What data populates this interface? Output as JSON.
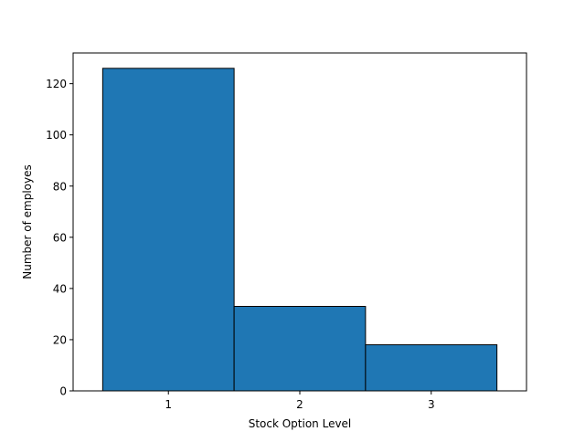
{
  "chart_data": {
    "type": "bar",
    "categories": [
      "1",
      "2",
      "3"
    ],
    "values": [
      126,
      33,
      18
    ],
    "title": "",
    "xlabel": "Stock Option Level",
    "ylabel": "Number of employes",
    "ylim": [
      0,
      132
    ],
    "yticks": [
      0,
      20,
      40,
      60,
      80,
      100,
      120
    ],
    "xticks": [
      "1",
      "2",
      "3"
    ],
    "grid": false,
    "legend": "none",
    "colors": {
      "bar_fill": "#1f77b4",
      "bar_edge": "#000000",
      "axis": "#000000"
    }
  }
}
